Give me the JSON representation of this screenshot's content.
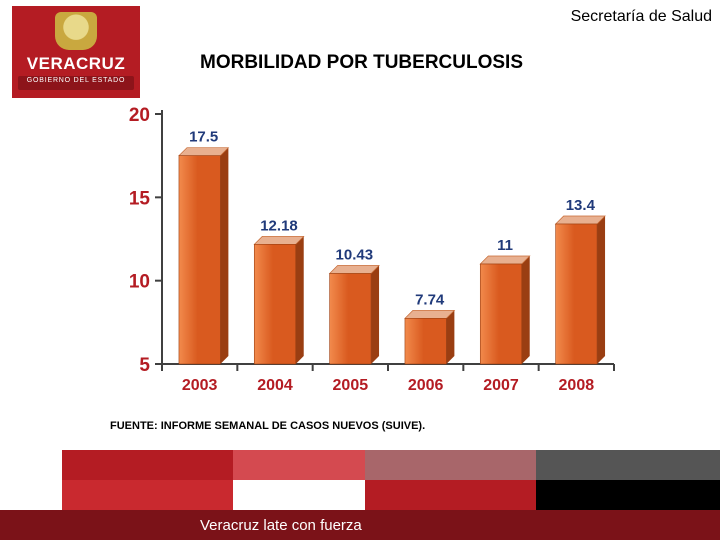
{
  "header": {
    "secretaria": "Secretaría de Salud",
    "logo_main": "VERACRUZ",
    "logo_sub": "GOBIERNO DEL ESTADO",
    "logo_bg": "#b41c23",
    "logo_sub_bg": "#8d141a"
  },
  "title": "MORBILIDAD POR TUBERCULOSIS",
  "chart": {
    "type": "bar",
    "categories": [
      "2003",
      "2004",
      "2005",
      "2006",
      "2007",
      "2008"
    ],
    "values": [
      17.5,
      12.18,
      10.43,
      7.74,
      11,
      13.4
    ],
    "value_labels": [
      "17.5",
      "12.18",
      "10.43",
      "7.74",
      "11",
      "13.4"
    ],
    "bar_fill": "#d95a1f",
    "bar_fill_light": "#f28a4c",
    "bar_side": "#9a3e12",
    "bar_top": "#e8b090",
    "bar_top_edge": "#c76a34",
    "label_color": "#203a7a",
    "axis_label_color": "#b41c23",
    "ylim": [
      5,
      20
    ],
    "yticks": [
      5,
      10,
      15,
      20
    ],
    "bar_width": 0.55,
    "axis_color": "#404040",
    "background_color": "#ffffff",
    "title_fontsize": 19,
    "ytick_fontsize": 19,
    "xtick_fontsize": 16,
    "value_fontsize": 15
  },
  "source": "FUENTE: INFORME SEMANAL DE CASOS NUEVOS (SUIVE).",
  "footer": {
    "slogan": "Veracruz late con fuerza",
    "band1_colors": [
      "#b41c23",
      "#d44a50",
      "#a8666a",
      "#555555"
    ],
    "band2_colors": [
      "#c9292f",
      "#ffffff",
      "#b41c23",
      "#000000"
    ],
    "band3_color": "#7b1218",
    "seg_bounds": [
      0.0,
      0.26,
      0.46,
      0.72,
      1.0
    ]
  }
}
